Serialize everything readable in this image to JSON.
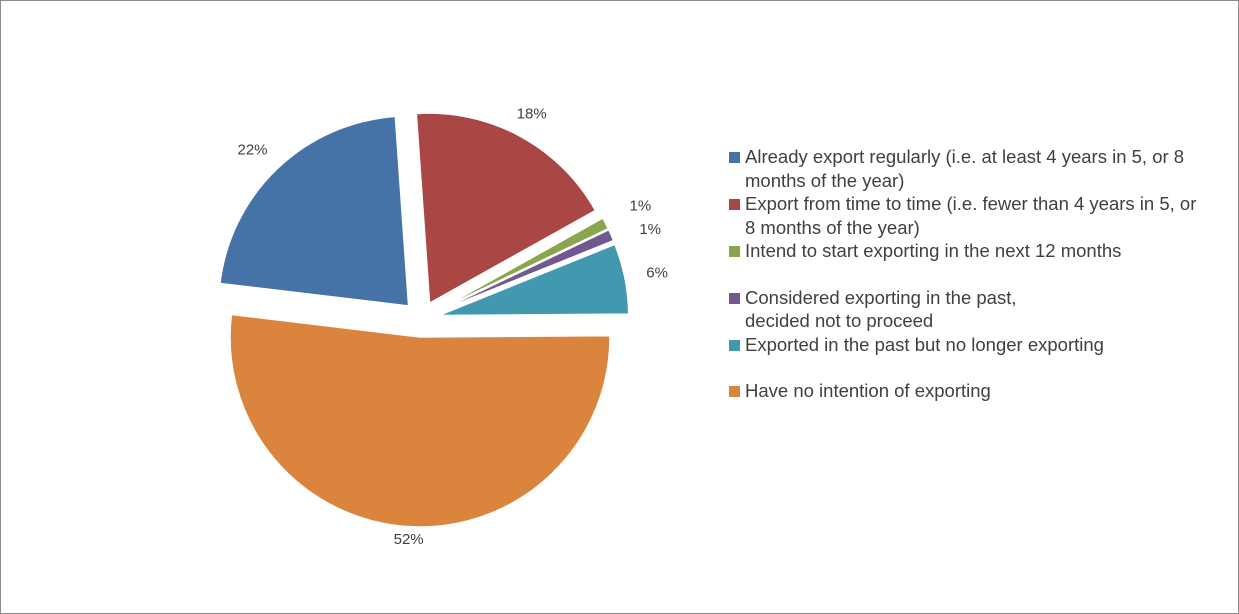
{
  "chart_data": {
    "type": "pie",
    "title": "",
    "labels": [
      "Already export regularly (i.e. at least 4 years in 5, or 8 months of the year)",
      "Export from time to time (i.e. fewer than 4 years in 5, or 8 months of the year)",
      "Intend to start exporting in the next 12 months",
      "Considered exporting in the past, decided not to proceed",
      "Exported in the past but no longer exporting",
      "Have no intention of exporting"
    ],
    "values": [
      22,
      18,
      1,
      1,
      6,
      52
    ],
    "value_labels": [
      "22%",
      "18%",
      "1%",
      "1%",
      "6%",
      "52%"
    ],
    "colors": [
      "#4572a7",
      "#aa4643",
      "#89a54e",
      "#71588f",
      "#4198af",
      "#db843d"
    ],
    "exploded": true,
    "legend_position": "right"
  }
}
